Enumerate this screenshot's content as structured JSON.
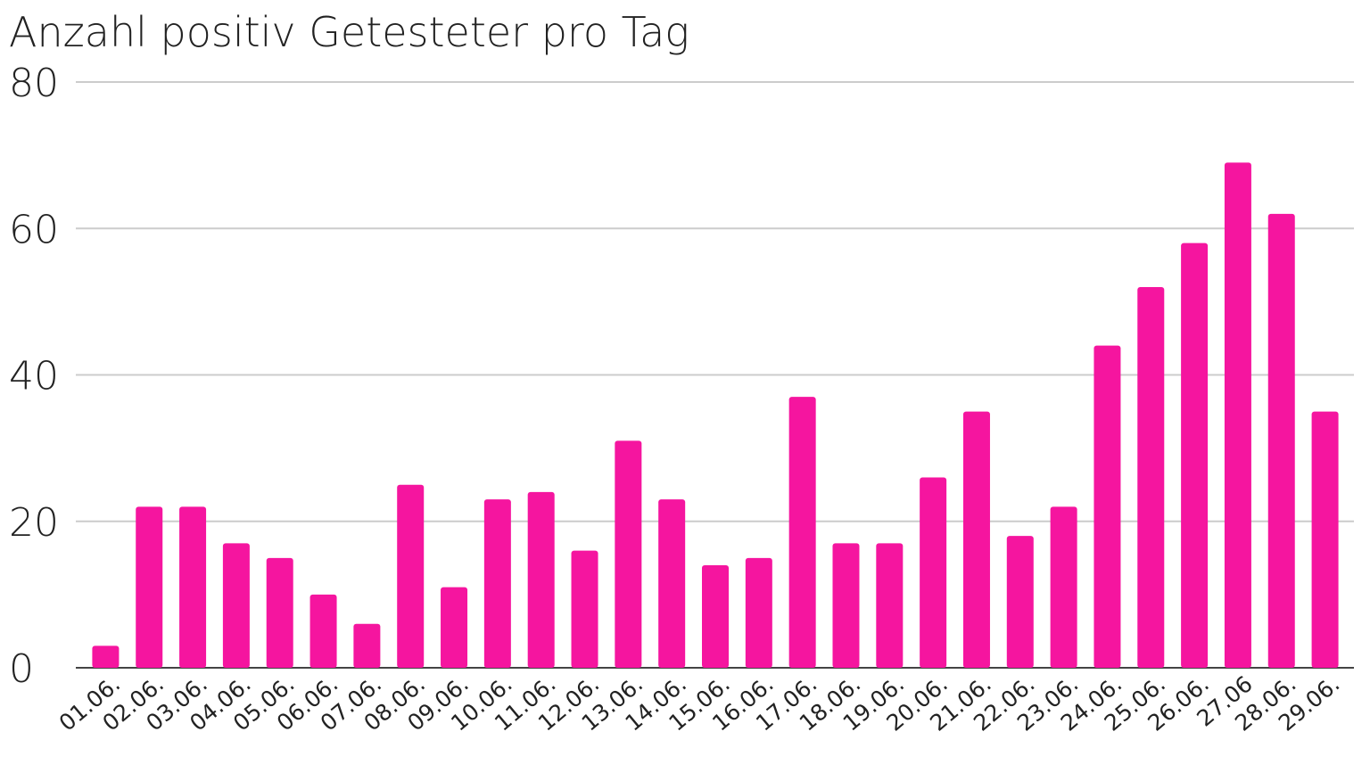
{
  "chart_data": {
    "type": "bar",
    "title": "Anzahl positiv Getesteter pro Tag",
    "categories": [
      "01.06.",
      "02.06.",
      "03.06.",
      "04.06.",
      "05.06.",
      "06.06.",
      "07.06.",
      "08.06.",
      "09.06.",
      "10.06.",
      "11.06.",
      "12.06.",
      "13.06.",
      "14.06.",
      "15.06.",
      "16.06.",
      "17.06.",
      "18.06.",
      "19.06.",
      "20.06.",
      "21.06.",
      "22.06.",
      "23.06.",
      "24.06.",
      "25.06.",
      "26.06.",
      "27.06",
      "28.06.",
      "29.06."
    ],
    "values": [
      3,
      22,
      22,
      17,
      15,
      10,
      6,
      25,
      11,
      23,
      24,
      16,
      31,
      23,
      14,
      15,
      37,
      17,
      17,
      26,
      35,
      18,
      22,
      44,
      52,
      58,
      69,
      62,
      35
    ],
    "color": "#f5159f",
    "ylim": [
      0,
      80
    ],
    "yticks": [
      0,
      20,
      40,
      60,
      80
    ],
    "grid": true
  }
}
